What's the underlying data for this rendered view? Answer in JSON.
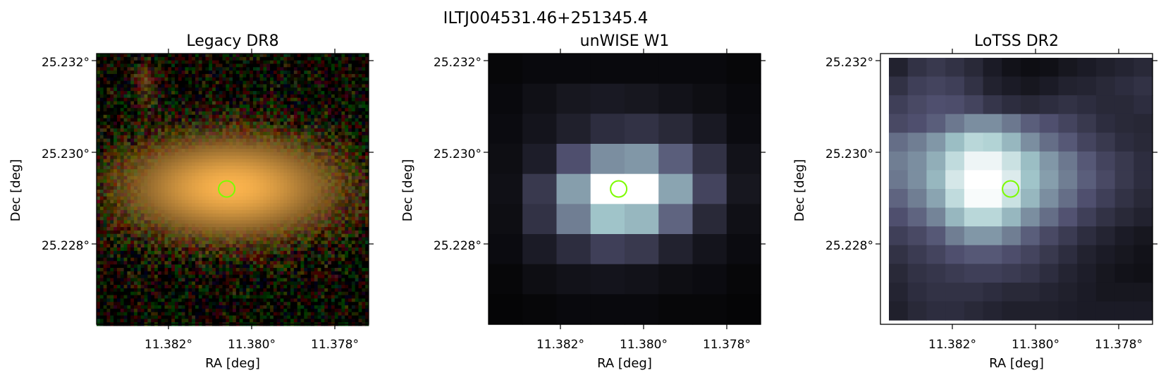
{
  "figure": {
    "title": "ILTJ004531.46+251345.4"
  },
  "marker_color": "#7cfc00",
  "chart_data": [
    {
      "type": "heatmap",
      "title": "Legacy DR8",
      "colormap": "rgb-composite",
      "xlabel": "RA [deg]",
      "ylabel": "Dec [deg]",
      "x_ticks": [
        "11.382°",
        "11.380°",
        "11.378°"
      ],
      "y_ticks": [
        "25.232°",
        "25.230°",
        "25.228°"
      ],
      "marker": {
        "shape": "circle",
        "ra": 11.3806,
        "dec": 25.2292
      }
    },
    {
      "type": "heatmap",
      "title": "unWISE W1",
      "colormap": "bone",
      "xlabel": "RA [deg]",
      "ylabel": "Dec [deg]",
      "x_ticks": [
        "11.382°",
        "11.380°",
        "11.378°"
      ],
      "y_ticks": [
        "25.232°",
        "25.230°",
        "25.228°"
      ],
      "marker": {
        "shape": "circle",
        "ra": 11.3806,
        "dec": 25.2292
      },
      "grid": [
        [
          0.03,
          0.04,
          0.04,
          0.04,
          0.04,
          0.04,
          0.04,
          0.03
        ],
        [
          0.04,
          0.07,
          0.1,
          0.11,
          0.1,
          0.08,
          0.06,
          0.04
        ],
        [
          0.05,
          0.09,
          0.14,
          0.2,
          0.22,
          0.18,
          0.11,
          0.05
        ],
        [
          0.06,
          0.13,
          0.35,
          0.55,
          0.58,
          0.4,
          0.22,
          0.08
        ],
        [
          0.07,
          0.25,
          0.6,
          1.0,
          1.0,
          0.62,
          0.3,
          0.1
        ],
        [
          0.06,
          0.22,
          0.5,
          0.72,
          0.68,
          0.42,
          0.18,
          0.07
        ],
        [
          0.05,
          0.12,
          0.2,
          0.28,
          0.25,
          0.15,
          0.09,
          0.05
        ],
        [
          0.03,
          0.06,
          0.08,
          0.09,
          0.08,
          0.06,
          0.05,
          0.03
        ],
        [
          0.02,
          0.03,
          0.04,
          0.04,
          0.04,
          0.03,
          0.03,
          0.02
        ]
      ]
    },
    {
      "type": "heatmap",
      "title": "LoTSS DR2",
      "colormap": "bone",
      "xlabel": "RA [deg]",
      "ylabel": "Dec [deg]",
      "x_ticks": [
        "11.382°",
        "11.380°",
        "11.378°"
      ],
      "y_ticks": [
        "25.232°",
        "25.230°",
        "25.228°"
      ],
      "marker": {
        "shape": "circle",
        "ra": 11.3806,
        "dec": 25.2292
      },
      "grid": [
        [
          0.15,
          0.22,
          0.25,
          0.22,
          0.18,
          0.12,
          0.08,
          0.06,
          0.07,
          0.1,
          0.12,
          0.14,
          0.16,
          0.18
        ],
        [
          0.22,
          0.28,
          0.3,
          0.28,
          0.22,
          0.15,
          0.12,
          0.1,
          0.12,
          0.15,
          0.16,
          0.18,
          0.2,
          0.22
        ],
        [
          0.28,
          0.32,
          0.35,
          0.34,
          0.3,
          0.24,
          0.2,
          0.18,
          0.2,
          0.22,
          0.2,
          0.18,
          0.18,
          0.2
        ],
        [
          0.32,
          0.35,
          0.4,
          0.48,
          0.55,
          0.55,
          0.48,
          0.4,
          0.35,
          0.3,
          0.25,
          0.2,
          0.18,
          0.17
        ],
        [
          0.45,
          0.5,
          0.58,
          0.7,
          0.8,
          0.78,
          0.68,
          0.55,
          0.45,
          0.38,
          0.3,
          0.25,
          0.2,
          0.18
        ],
        [
          0.5,
          0.55,
          0.65,
          0.82,
          0.95,
          0.95,
          0.85,
          0.7,
          0.58,
          0.48,
          0.38,
          0.3,
          0.25,
          0.2
        ],
        [
          0.48,
          0.55,
          0.68,
          0.88,
          1.0,
          1.0,
          0.9,
          0.72,
          0.6,
          0.5,
          0.4,
          0.32,
          0.25,
          0.2
        ],
        [
          0.42,
          0.5,
          0.62,
          0.82,
          0.98,
          0.98,
          0.85,
          0.68,
          0.55,
          0.45,
          0.35,
          0.28,
          0.22,
          0.18
        ],
        [
          0.35,
          0.42,
          0.52,
          0.68,
          0.8,
          0.8,
          0.68,
          0.55,
          0.45,
          0.36,
          0.28,
          0.22,
          0.18,
          0.15
        ],
        [
          0.28,
          0.32,
          0.38,
          0.5,
          0.58,
          0.58,
          0.5,
          0.4,
          0.32,
          0.26,
          0.2,
          0.16,
          0.12,
          0.1
        ],
        [
          0.22,
          0.26,
          0.3,
          0.35,
          0.38,
          0.38,
          0.34,
          0.3,
          0.25,
          0.2,
          0.15,
          0.12,
          0.1,
          0.08
        ],
        [
          0.18,
          0.22,
          0.24,
          0.26,
          0.28,
          0.28,
          0.26,
          0.24,
          0.2,
          0.16,
          0.13,
          0.1,
          0.08,
          0.07
        ],
        [
          0.16,
          0.2,
          0.22,
          0.22,
          0.22,
          0.2,
          0.18,
          0.18,
          0.16,
          0.14,
          0.12,
          0.1,
          0.1,
          0.1
        ],
        [
          0.14,
          0.18,
          0.2,
          0.2,
          0.18,
          0.16,
          0.14,
          0.14,
          0.14,
          0.13,
          0.12,
          0.12,
          0.12,
          0.12
        ]
      ]
    }
  ]
}
